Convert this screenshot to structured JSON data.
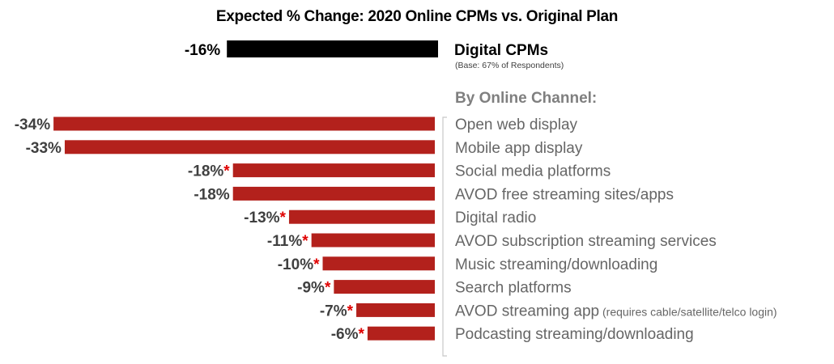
{
  "chart_data": {
    "type": "bar",
    "orientation": "horizontal",
    "title": "Expected % Change: 2020 Online CPMs vs. Original Plan",
    "summary": {
      "label": "Digital CPMs",
      "base_note": "(Base:  67% of Respondents)",
      "value": -16,
      "value_label": "-16%",
      "color": "#000000"
    },
    "section_heading": "By Online Channel:",
    "categories": [
      "Open web display",
      "Mobile app display",
      "Social media platforms",
      "AVOD free streaming sites/apps",
      "Digital radio",
      "AVOD subscription streaming services",
      "Music streaming/downloading",
      "Search platforms",
      "AVOD streaming app",
      "Podcasting streaming/downloading"
    ],
    "category_notes": [
      "",
      "",
      "",
      "",
      "",
      "",
      "",
      "",
      "(requires cable/satellite/telco login)",
      ""
    ],
    "values": [
      -34,
      -33,
      -18,
      -18,
      -13,
      -11,
      -10,
      -9,
      -7,
      -6
    ],
    "value_labels": [
      "-34%",
      "-33%",
      "-18%",
      "-18%",
      "-13%",
      "-11%",
      "-10%",
      "-9%",
      "-7%",
      "-6%"
    ],
    "asterisk": [
      false,
      false,
      true,
      false,
      true,
      true,
      true,
      true,
      true,
      true
    ],
    "asterisk_symbol": "*",
    "bar_color": "#b3211c",
    "asterisk_color": "#e00000",
    "grid": false
  }
}
